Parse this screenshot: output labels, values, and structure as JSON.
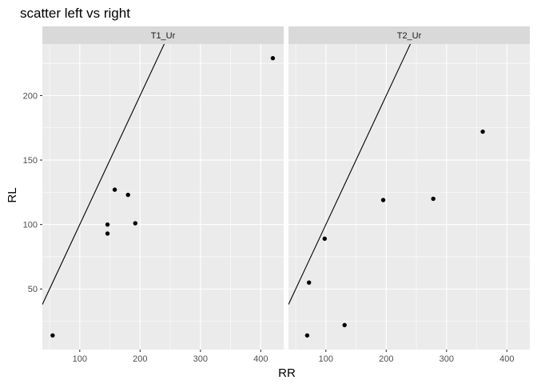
{
  "chart_data": {
    "type": "scatter",
    "title": "scatter left vs right",
    "xlabel": "RR",
    "ylabel": "RL",
    "xlim": [
      38,
      438
    ],
    "ylim": [
      3,
      240
    ],
    "x_ticks": [
      100,
      200,
      300,
      400
    ],
    "y_ticks": [
      50,
      100,
      150,
      200
    ],
    "grid": true,
    "facets": [
      {
        "name": "T1_Ur",
        "points": [
          {
            "x": 55,
            "y": 14
          },
          {
            "x": 146,
            "y": 100
          },
          {
            "x": 146,
            "y": 93
          },
          {
            "x": 158,
            "y": 127
          },
          {
            "x": 180,
            "y": 123
          },
          {
            "x": 192,
            "y": 101
          },
          {
            "x": 420,
            "y": 229
          }
        ],
        "reference_line": {
          "slope": 1,
          "intercept": 0
        }
      },
      {
        "name": "T2_Ur",
        "points": [
          {
            "x": 69,
            "y": 14
          },
          {
            "x": 72,
            "y": 55
          },
          {
            "x": 98,
            "y": 89
          },
          {
            "x": 131,
            "y": 22
          },
          {
            "x": 195,
            "y": 119
          },
          {
            "x": 278,
            "y": 120
          },
          {
            "x": 360,
            "y": 172
          }
        ],
        "reference_line": {
          "slope": 1,
          "intercept": 0
        }
      }
    ]
  }
}
